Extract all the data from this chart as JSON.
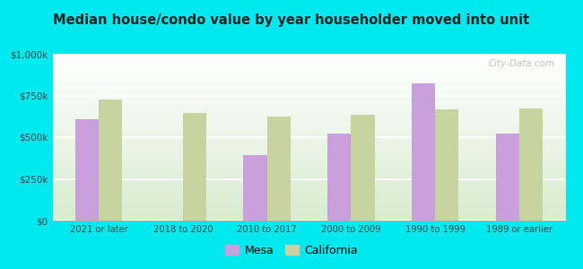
{
  "title": "Median house/condo value by year householder moved into unit",
  "categories": [
    "2021 or later",
    "2018 to 2020",
    "2010 to 2017",
    "2000 to 2009",
    "1990 to 1999",
    "1989 or earlier"
  ],
  "mesa_values": [
    610000,
    0,
    390000,
    520000,
    820000,
    520000
  ],
  "california_values": [
    725000,
    645000,
    625000,
    635000,
    665000,
    670000
  ],
  "mesa_color": "#c9a0dc",
  "california_color": "#c8d4a0",
  "background_color": "#00e8f0",
  "plot_bg_top": "#ffffff",
  "plot_bg_bottom": "#d8ecd0",
  "ylim": [
    0,
    1000000
  ],
  "yticks": [
    0,
    250000,
    500000,
    750000,
    1000000
  ],
  "ytick_labels": [
    "$0",
    "$250k",
    "$500k",
    "$750k",
    "$1,000k"
  ],
  "bar_width": 0.28,
  "legend_mesa": "Mesa",
  "legend_california": "California",
  "watermark": "City-Data.com"
}
